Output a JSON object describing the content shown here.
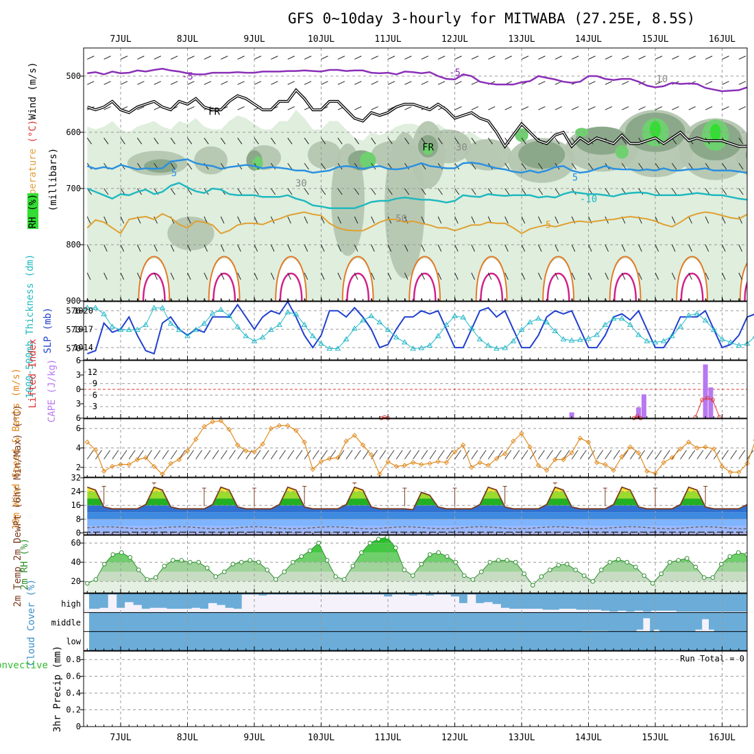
{
  "chart_data": [
    {
      "type": "heatmap",
      "panel": "upper-air",
      "title": "GFS 0~10day 3-hourly for MITWABA (27.25E, 8.5S)",
      "date_labels": [
        "7JUL",
        "8JUL",
        "9JUL",
        "10JUL",
        "11JUL",
        "12JUL",
        "13JUL",
        "14JUL",
        "15JUL",
        "16JUL"
      ],
      "ylabel_parts": [
        "RH (%)",
        "Temperature",
        "(°C)",
        "Wind (m/s)",
        "(millibars)"
      ],
      "yticks": [
        500,
        600,
        700,
        800,
        900
      ],
      "ylim": [
        450,
        900
      ],
      "contour_labels": [
        {
          "text": "-5",
          "day": 1.0,
          "p": 500
        },
        {
          "text": "-5",
          "day": 5.0,
          "p": 493
        },
        {
          "text": "FR",
          "day": 1.4,
          "p": 563
        },
        {
          "text": "FR",
          "day": 4.6,
          "p": 626
        },
        {
          "text": "30",
          "day": 5.1,
          "p": 626
        },
        {
          "text": "30",
          "day": 2.7,
          "p": 690
        },
        {
          "text": "5",
          "day": 0.8,
          "p": 672
        },
        {
          "text": "5",
          "day": 6.8,
          "p": 680
        },
        {
          "text": "-10",
          "day": 7.0,
          "p": 718
        },
        {
          "text": "50",
          "day": 4.2,
          "p": 753
        },
        {
          "text": "5",
          "day": 6.4,
          "p": 764
        },
        {
          "text": "10",
          "day": 8.1,
          "p": 505
        }
      ],
      "minus5_hPa": [
        495,
        493,
        497,
        492,
        495,
        494,
        490,
        492,
        489,
        487,
        490,
        492,
        495,
        497,
        497,
        494,
        494,
        494,
        493,
        494,
        494,
        492,
        492,
        492,
        491,
        491,
        490,
        491,
        492,
        489,
        489,
        491,
        490,
        490,
        494,
        495,
        494,
        497,
        492,
        493,
        495,
        493,
        500,
        505,
        506,
        497,
        500,
        510,
        513,
        515,
        515,
        515,
        511,
        509,
        500,
        503,
        506,
        510,
        512,
        510,
        500,
        500,
        505,
        507,
        505,
        505,
        510,
        517,
        520,
        518,
        512,
        514,
        513,
        514,
        521,
        524,
        527,
        526,
        525,
        520,
        517
      ],
      "freezing_hPa": [
        555,
        560,
        555,
        545,
        560,
        565,
        555,
        550,
        545,
        555,
        560,
        545,
        550,
        540,
        555,
        560,
        560,
        545,
        535,
        540,
        550,
        560,
        560,
        545,
        545,
        525,
        540,
        560,
        560,
        545,
        545,
        560,
        575,
        580,
        565,
        570,
        565,
        555,
        550,
        550,
        555,
        560,
        550,
        560,
        575,
        570,
        565,
        575,
        580,
        600,
        625,
        605,
        585,
        600,
        615,
        620,
        605,
        600,
        625,
        610,
        620,
        610,
        615,
        620,
        605,
        620,
        620,
        615,
        610,
        620,
        610,
        600,
        615,
        610,
        615,
        615,
        615,
        620,
        625,
        625,
        620
      ],
      "t_minus5_hPa": [
        660,
        665,
        662,
        665,
        658,
        662,
        666,
        664,
        665,
        664,
        652,
        650,
        648,
        655,
        658,
        660,
        665,
        662,
        660,
        658,
        660,
        664,
        662,
        663,
        665,
        668,
        668,
        672,
        670,
        668,
        662,
        660,
        662,
        665,
        662,
        660,
        665,
        666,
        664,
        660,
        655,
        660,
        662,
        664,
        664,
        655,
        654,
        656,
        660,
        664,
        666,
        670,
        672,
        668,
        672,
        668,
        662,
        660,
        668,
        672,
        670,
        665,
        660,
        665,
        666,
        666,
        668,
        666,
        668,
        664,
        668,
        668,
        666,
        666,
        664,
        668,
        668,
        668,
        670,
        672,
        670
      ],
      "t_minus10_hPa": [
        700,
        706,
        712,
        718,
        710,
        712,
        706,
        702,
        710,
        706,
        695,
        690,
        698,
        705,
        708,
        700,
        702,
        710,
        712,
        712,
        712,
        715,
        715,
        715,
        712,
        718,
        722,
        730,
        732,
        735,
        735,
        735,
        735,
        730,
        724,
        722,
        722,
        718,
        716,
        718,
        720,
        720,
        722,
        725,
        722,
        712,
        714,
        715,
        710,
        712,
        713,
        712,
        712,
        712,
        716,
        714,
        716,
        710,
        706,
        708,
        710,
        710,
        712,
        714,
        710,
        708,
        707,
        708,
        712,
        712,
        712,
        712,
        710,
        708,
        710,
        712,
        712,
        715,
        718,
        720,
        720
      ],
      "t5_min_hPa": [
        770,
        756,
        760,
        770,
        780,
        755,
        752,
        750,
        755,
        745,
        752,
        764,
        770,
        758,
        760,
        765,
        780,
        775,
        765,
        762,
        762,
        764,
        758,
        754,
        748,
        745,
        742,
        746,
        748,
        762,
        770,
        774,
        775,
        775,
        768,
        760,
        755,
        755,
        760,
        758,
        762,
        765,
        770,
        770,
        775,
        770,
        765,
        765,
        760,
        762,
        762,
        770,
        780,
        772,
        768,
        765,
        768,
        764,
        760,
        758,
        760,
        758,
        756,
        755,
        752,
        750,
        752,
        754,
        758,
        764,
        768,
        760,
        750,
        745,
        742,
        744,
        748,
        752,
        754,
        746,
        745
      ],
      "surface_peak_days": [
        0.5,
        1.55,
        2.55,
        3.55,
        4.55,
        5.55,
        6.55,
        7.55,
        8.55,
        9.5
      ],
      "rh_bands": [
        {
          "level": 30,
          "color": "#dfeedd"
        },
        {
          "level": 50,
          "color": "#b4c6b0"
        },
        {
          "level": 70,
          "color": "#8ca88a"
        },
        {
          "level": 80,
          "color": "#6fd06f"
        },
        {
          "level": 90,
          "color": "#33dd33"
        }
      ]
    },
    {
      "type": "line",
      "panel": "thickness-slp",
      "ylabel_left": "1000-500mb Thickness (dm)",
      "ylabel_right": "SLP (mb)",
      "yticks_left": [
        570,
        573,
        576
      ],
      "yticks_right": [
        1014,
        1017,
        1020
      ],
      "ylim_right": [
        1012,
        1021.5
      ],
      "ylim_left": [
        568.2,
        577.5
      ],
      "series": [
        {
          "name": "SLP (mb)",
          "color": "#1f3fd0",
          "values": [
            1013,
            1013.5,
            1018,
            1016.5,
            1017,
            1019,
            1016,
            1013.5,
            1013,
            1018,
            1019,
            1017,
            1016,
            1017,
            1016.5,
            1019,
            1019,
            1019,
            1021,
            1019,
            1017,
            1019,
            1020,
            1019.5,
            1021.5,
            1019,
            1016,
            1014,
            1016,
            1020,
            1020,
            1019,
            1020.5,
            1019,
            1017,
            1014,
            1014.5,
            1017,
            1019,
            1019,
            1020,
            1019.5,
            1020,
            1017,
            1014,
            1014,
            1017,
            1020,
            1020.5,
            1019,
            1020,
            1017,
            1014,
            1014,
            1016,
            1019,
            1020,
            1019.5,
            1020,
            1017,
            1014,
            1014,
            1016,
            1019,
            1019.5,
            1018.5,
            1020,
            1017,
            1014,
            1014,
            1016,
            1019,
            1019,
            1019,
            1020,
            1017,
            1014,
            1014.5,
            1016,
            1019,
            1019.5
          ]
        },
        {
          "name": "1000-500mb Thickness (dm)",
          "color": "#22b8c8",
          "values": [
            576.5,
            576.5,
            575.5,
            573.5,
            573,
            573,
            573,
            573.8,
            576.5,
            576.5,
            574,
            573,
            572,
            573,
            574,
            575.6,
            576.2,
            575.2,
            573.5,
            572,
            571.2,
            571.8,
            573,
            573.8,
            575.8,
            575.5,
            573.8,
            572,
            570.8,
            570,
            570,
            571.5,
            573.2,
            574.5,
            575.2,
            574.2,
            573,
            571.8,
            571,
            570,
            570.1,
            570.5,
            572,
            573.8,
            575.2,
            575,
            573.2,
            571.5,
            570.5,
            570,
            570.1,
            571.2,
            573,
            574.2,
            574.8,
            574.2,
            572.8,
            571.5,
            571.3,
            571.4,
            571.6,
            572.2,
            573.8,
            574.8,
            574.8,
            573.8,
            572.2,
            571.2,
            571,
            571.2,
            572,
            573.5,
            575.3,
            575.6,
            574.5,
            573,
            571.5,
            571,
            570.5,
            570.8,
            572
          ]
        }
      ]
    },
    {
      "type": "bar",
      "panel": "cape-li",
      "ylabel_left": "Lifted Index",
      "ylabel_right": "CAPE (J/kg)",
      "yticks_li": [
        -6,
        -3,
        0,
        3,
        6
      ],
      "li_tick_labels": [
        "6",
        "3",
        "0",
        "3",
        "6"
      ],
      "yticks_cape": [
        3,
        6,
        9,
        12
      ],
      "ylim_cape": [
        0,
        15
      ],
      "cape_bars": [
        {
          "day": 6.75,
          "value": 1.5
        },
        {
          "day": 7.75,
          "value": 2.8
        },
        {
          "day": 7.83,
          "value": 6.2
        },
        {
          "day": 8.75,
          "value": 14
        },
        {
          "day": 8.83,
          "value": 8
        }
      ],
      "li_curves": [
        {
          "days": [
            3.9,
            3.95,
            4.0
          ],
          "values": [
            6,
            5.8,
            6
          ]
        },
        {
          "days": [
            7.68,
            7.73,
            7.78
          ],
          "values": [
            6,
            5.6,
            6
          ]
        },
        {
          "days": [
            8.6,
            8.7,
            8.78,
            8.86,
            8.96
          ],
          "values": [
            5.8,
            2.2,
            1.8,
            2.2,
            5.8
          ]
        }
      ]
    },
    {
      "type": "line",
      "panel": "wind10m",
      "ylabel": "10m Wind Speed & Barbs (m/s)",
      "yticks": [
        2,
        4,
        6
      ],
      "ylim": [
        1,
        7
      ],
      "series": [
        {
          "name": "10m Wind Speed",
          "color": "#e08a1e",
          "values": [
            4.6,
            3.8,
            1.6,
            2.1,
            2.3,
            2.3,
            2.8,
            3.0,
            2.1,
            1.3,
            2.4,
            2.8,
            3.7,
            4.9,
            6.2,
            6.7,
            6.8,
            5.9,
            4.3,
            3.7,
            3.6,
            4.4,
            6.0,
            6.3,
            6.3,
            5.8,
            4.6,
            1.8,
            2.6,
            2.9,
            3.0,
            4.7,
            5.3,
            4.3,
            3.3,
            1.3,
            2.6,
            2.1,
            2.2,
            2.5,
            2.3,
            2.4,
            2.6,
            2.5,
            3.6,
            4.3,
            2.0,
            2.5,
            2.2,
            2.9,
            3.4,
            4.7,
            5.5,
            4.1,
            2.2,
            1.7,
            2.8,
            2.8,
            3.5,
            5.0,
            4.6,
            2.5,
            2.3,
            1.7,
            3.1,
            4.1,
            3.5,
            1.6,
            1.4,
            2.5,
            3.0,
            3.9,
            4.6,
            4.0,
            4.1,
            3.9,
            2.1,
            1.5,
            1.5,
            2.4,
            4.8
          ]
        }
      ]
    },
    {
      "type": "area",
      "panel": "temp2m",
      "ylabel": "2m Temp 2m DewPt (6hr Min/Max) (°C)",
      "yticks": [
        0,
        8,
        16,
        24,
        32
      ],
      "ylim": [
        -1,
        32
      ],
      "temp_min": 14,
      "temp_max": 28,
      "dewpoint_mean": 3,
      "dewpoint_min": 0.5,
      "temp_bands": [
        {
          "level": 8,
          "color": "#3d8ae0"
        },
        {
          "level": 12,
          "color": "#2f70d0"
        },
        {
          "level": 16,
          "color": "#22b022"
        },
        {
          "level": 20,
          "color": "#9adb2c"
        },
        {
          "level": 24,
          "color": "#f5e432"
        },
        {
          "level": 28,
          "color": "#f5b432"
        }
      ],
      "cold_bands": [
        {
          "level": 0,
          "color": "#b8b8f0"
        },
        {
          "level": 4,
          "color": "#7fb4ff"
        }
      ]
    },
    {
      "type": "area",
      "panel": "rh2m",
      "ylabel": "2m RH (%)",
      "yticks": [
        20,
        40,
        60
      ],
      "ylim": [
        8,
        68
      ],
      "series": [
        {
          "name": "2m RH",
          "color": "#2f8f2f",
          "values": [
            18,
            22,
            38,
            48,
            50,
            45,
            32,
            22,
            24,
            36,
            42,
            42,
            40,
            40,
            34,
            25,
            30,
            38,
            40,
            42,
            40,
            32,
            22,
            30,
            40,
            46,
            52,
            60,
            42,
            25,
            22,
            36,
            50,
            60,
            64,
            66,
            55,
            32,
            26,
            38,
            48,
            50,
            46,
            40,
            26,
            22,
            30,
            40,
            42,
            42,
            40,
            28,
            16,
            25,
            32,
            37,
            38,
            32,
            26,
            20,
            32,
            40,
            43,
            40,
            35,
            26,
            18,
            28,
            40,
            42,
            44,
            35,
            24,
            24,
            38,
            46,
            50,
            48,
            40
          ]
        }
      ]
    },
    {
      "type": "bar",
      "panel": "cloud",
      "ylabel": "Cloud Cover (%)",
      "levels": [
        "high",
        "middle",
        "low"
      ],
      "high_values": [
        0.8,
        0.8,
        0.75,
        0.05,
        0.75,
        0.45,
        0.6,
        0.8,
        0.75,
        0.75,
        0.8,
        0.8,
        0.8,
        0.75,
        0.8,
        0.5,
        0.6,
        0.75,
        0.8,
        0.05,
        0.05,
        0.1,
        0.05,
        0.05,
        0.05,
        0.05,
        0.05,
        0.05,
        0.05,
        0.05,
        0.05,
        0.05,
        0.05,
        0.05,
        0.05,
        0.05,
        0.15,
        0.05,
        0.05,
        0.1,
        0.05,
        0.1,
        0.05,
        0.05,
        0.15,
        0.5,
        0.05,
        0.5,
        0.45,
        0.55,
        0.75,
        0.8,
        0.8,
        0.8,
        0.8,
        0.85,
        0.85,
        0.8,
        0.8,
        0.85,
        0.85,
        0.85,
        0.9,
        0.95,
        0.9,
        0.95,
        0.9,
        0.95,
        0.9,
        0.9,
        0.9,
        0.95,
        0.95,
        0.95,
        0.95,
        0.95,
        0.95,
        0.95,
        0.95,
        0.95,
        0.95
      ],
      "middle_values": [
        {
          "day": 6.9,
          "width": 0.4,
          "value": 0.97
        },
        {
          "day": 7.72,
          "width": 0.13,
          "value": 0.9
        },
        {
          "day": 7.82,
          "width": 0.1,
          "value": 0.3
        },
        {
          "day": 7.98,
          "width": 0.08,
          "value": 0.9
        },
        {
          "day": 8.6,
          "width": 0.1,
          "value": 0.9
        },
        {
          "day": 8.7,
          "width": 0.1,
          "value": 0.35
        },
        {
          "day": 8.8,
          "width": 0.08,
          "value": 0.9
        }
      ]
    },
    {
      "type": "bar",
      "panel": "precip",
      "ylabel_left": "Total / Rain Convective",
      "ylabel_right": "3hr Precip (mm)",
      "yticks": [
        0,
        0.2,
        0.4,
        0.6,
        0.8
      ],
      "ylim": [
        0,
        0.9
      ],
      "run_total": "Run Total = 0",
      "values": []
    }
  ]
}
